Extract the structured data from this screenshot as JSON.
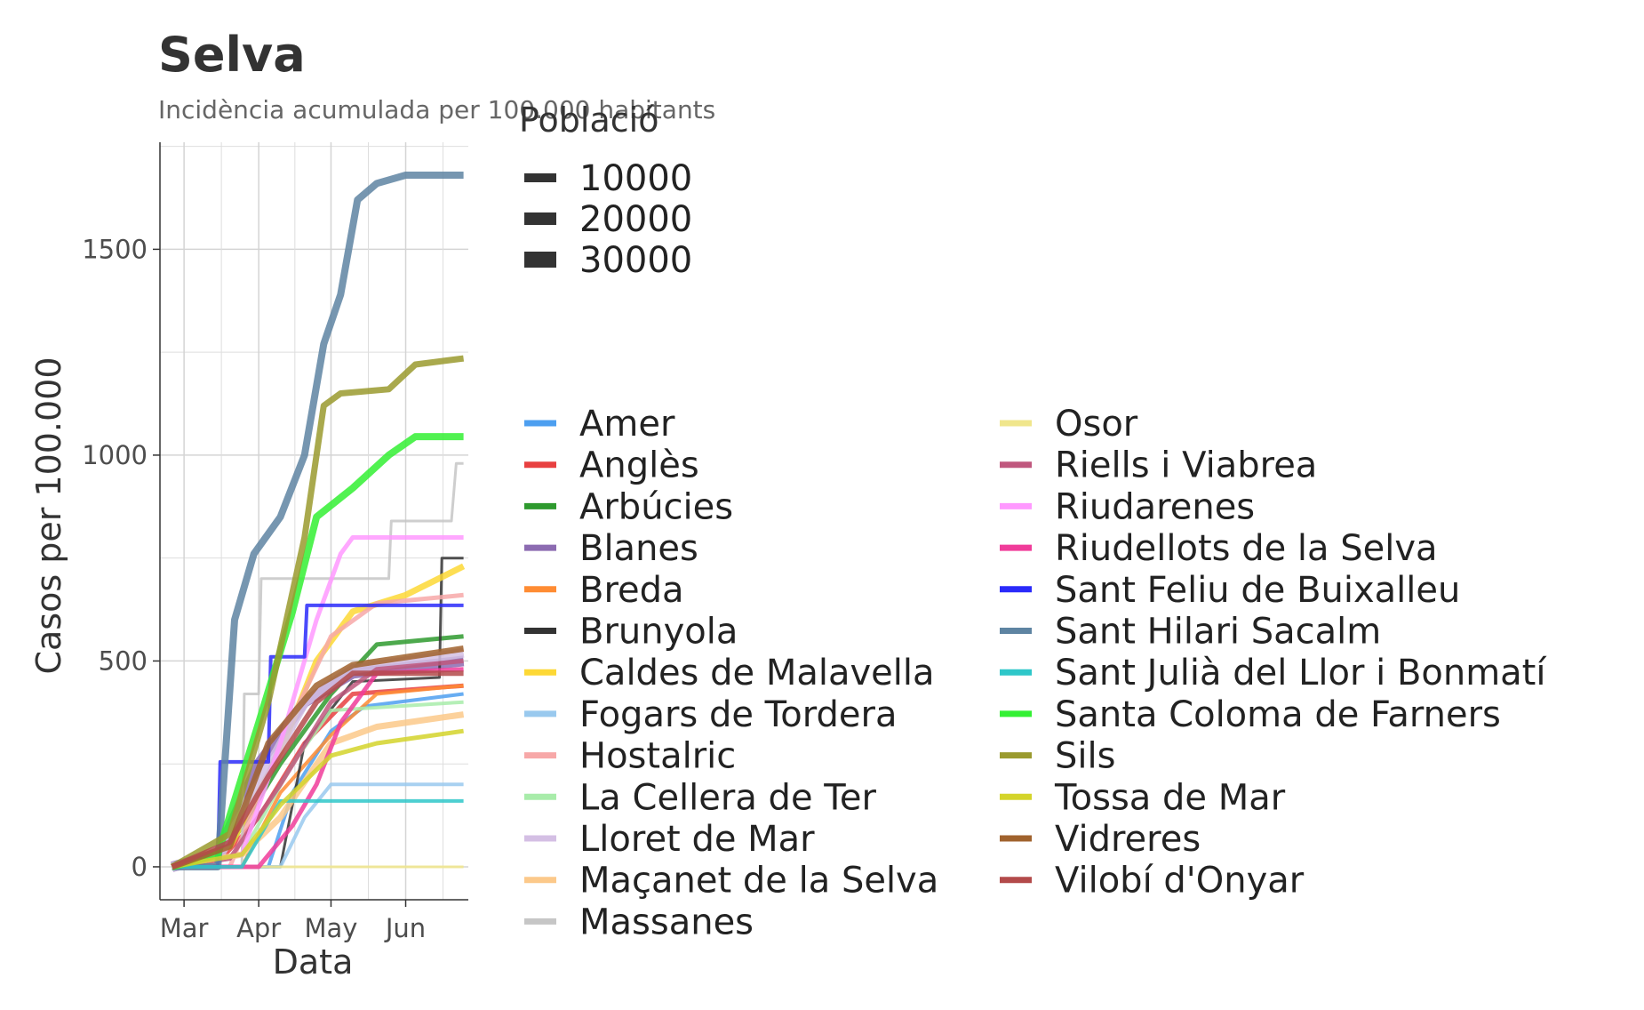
{
  "chart_data": {
    "type": "line",
    "title": "Selva",
    "subtitle": "Incidència acumulada per 100.000 habitants",
    "xlabel": "Data",
    "ylabel": "Casos per 100.000",
    "x_ticks": [
      "Mar",
      "Apr",
      "May",
      "Jun"
    ],
    "x_tick_dates": [
      "2020-03-01",
      "2020-04-01",
      "2020-05-01",
      "2020-06-01"
    ],
    "x_range": [
      "2020-02-20",
      "2020-06-27"
    ],
    "y_ticks": [
      0,
      500,
      1000,
      1500
    ],
    "ylim": [
      -80,
      1760
    ],
    "grid": true,
    "size_legend": {
      "title": "Població",
      "entries": [
        "10000",
        "20000",
        "30000"
      ]
    },
    "series": [
      {
        "name": "Amer",
        "color": "#4d9ff0",
        "width": 4,
        "points": [
          [
            "2020-02-25",
            0
          ],
          [
            "2020-04-05",
            0
          ],
          [
            "2020-04-15",
            180
          ],
          [
            "2020-05-01",
            330
          ],
          [
            "2020-05-15",
            390
          ],
          [
            "2020-06-25",
            420
          ]
        ]
      },
      {
        "name": "Anglès",
        "color": "#e84040",
        "width": 5,
        "points": [
          [
            "2020-02-25",
            0
          ],
          [
            "2020-03-15",
            10
          ],
          [
            "2020-04-01",
            120
          ],
          [
            "2020-04-20",
            300
          ],
          [
            "2020-05-10",
            420
          ],
          [
            "2020-06-25",
            440
          ]
        ]
      },
      {
        "name": "Arbúcies",
        "color": "#2e9a2e",
        "width": 5,
        "points": [
          [
            "2020-02-25",
            0
          ],
          [
            "2020-03-20",
            50
          ],
          [
            "2020-04-10",
            250
          ],
          [
            "2020-05-01",
            420
          ],
          [
            "2020-05-20",
            540
          ],
          [
            "2020-06-25",
            560
          ]
        ]
      },
      {
        "name": "Blanes",
        "color": "#8c6bb1",
        "width": 12,
        "points": [
          [
            "2020-02-25",
            0
          ],
          [
            "2020-03-15",
            30
          ],
          [
            "2020-04-01",
            250
          ],
          [
            "2020-04-20",
            400
          ],
          [
            "2020-05-10",
            470
          ],
          [
            "2020-06-25",
            500
          ]
        ]
      },
      {
        "name": "Breda",
        "color": "#ff8c33",
        "width": 4,
        "points": [
          [
            "2020-02-25",
            0
          ],
          [
            "2020-03-25",
            0
          ],
          [
            "2020-04-10",
            180
          ],
          [
            "2020-05-01",
            320
          ],
          [
            "2020-05-20",
            420
          ],
          [
            "2020-06-25",
            440
          ]
        ]
      },
      {
        "name": "Brunyola",
        "color": "#333333",
        "width": 3,
        "points": [
          [
            "2020-02-25",
            0
          ],
          [
            "2020-04-10",
            0
          ],
          [
            "2020-04-20",
            300
          ],
          [
            "2020-05-10",
            450
          ],
          [
            "2020-06-15",
            460
          ],
          [
            "2020-06-16",
            750
          ],
          [
            "2020-06-25",
            750
          ]
        ]
      },
      {
        "name": "Caldes de Malavella",
        "color": "#fdd835",
        "width": 7,
        "points": [
          [
            "2020-02-25",
            0
          ],
          [
            "2020-03-20",
            50
          ],
          [
            "2020-04-10",
            280
          ],
          [
            "2020-04-25",
            500
          ],
          [
            "2020-05-10",
            620
          ],
          [
            "2020-06-01",
            660
          ],
          [
            "2020-06-25",
            730
          ]
        ]
      },
      {
        "name": "Fogars de Tordera",
        "color": "#99c9ee",
        "width": 4,
        "points": [
          [
            "2020-02-25",
            0
          ],
          [
            "2020-04-10",
            0
          ],
          [
            "2020-04-20",
            120
          ],
          [
            "2020-05-01",
            200
          ],
          [
            "2020-06-25",
            200
          ]
        ]
      },
      {
        "name": "Hostalric",
        "color": "#f7a8a8",
        "width": 5,
        "points": [
          [
            "2020-02-25",
            0
          ],
          [
            "2020-03-20",
            0
          ],
          [
            "2020-04-10",
            300
          ],
          [
            "2020-05-01",
            560
          ],
          [
            "2020-05-20",
            640
          ],
          [
            "2020-06-25",
            660
          ]
        ]
      },
      {
        "name": "La Cellera de Ter",
        "color": "#a8ecaa",
        "width": 4,
        "points": [
          [
            "2020-02-25",
            0
          ],
          [
            "2020-03-25",
            30
          ],
          [
            "2020-04-15",
            250
          ],
          [
            "2020-05-01",
            380
          ],
          [
            "2020-06-25",
            400
          ]
        ]
      },
      {
        "name": "Lloret de Mar",
        "color": "#d4bfe4",
        "width": 11,
        "points": [
          [
            "2020-02-25",
            0
          ],
          [
            "2020-03-15",
            20
          ],
          [
            "2020-04-01",
            200
          ],
          [
            "2020-04-20",
            400
          ],
          [
            "2020-05-10",
            480
          ],
          [
            "2020-06-25",
            520
          ]
        ]
      },
      {
        "name": "Maçanet de la Selva",
        "color": "#fcc98a",
        "width": 7,
        "points": [
          [
            "2020-02-25",
            0
          ],
          [
            "2020-03-25",
            30
          ],
          [
            "2020-04-10",
            120
          ],
          [
            "2020-05-01",
            300
          ],
          [
            "2020-05-20",
            340
          ],
          [
            "2020-06-25",
            370
          ]
        ]
      },
      {
        "name": "Massanes",
        "color": "#c6c6c6",
        "width": 3,
        "points": [
          [
            "2020-02-25",
            0
          ],
          [
            "2020-03-25",
            0
          ],
          [
            "2020-03-26",
            420
          ],
          [
            "2020-04-01",
            420
          ],
          [
            "2020-04-02",
            700
          ],
          [
            "2020-05-25",
            700
          ],
          [
            "2020-05-26",
            840
          ],
          [
            "2020-06-20",
            840
          ],
          [
            "2020-06-22",
            980
          ],
          [
            "2020-06-25",
            980
          ]
        ]
      },
      {
        "name": "Osor",
        "color": "#f0e68c",
        "width": 3,
        "points": [
          [
            "2020-02-25",
            0
          ],
          [
            "2020-06-25",
            0
          ]
        ]
      },
      {
        "name": "Riells i Viabrea",
        "color": "#c0587e",
        "width": 5,
        "points": [
          [
            "2020-02-25",
            0
          ],
          [
            "2020-03-20",
            20
          ],
          [
            "2020-04-10",
            200
          ],
          [
            "2020-05-01",
            400
          ],
          [
            "2020-05-20",
            480
          ],
          [
            "2020-06-25",
            500
          ]
        ]
      },
      {
        "name": "Riudarenes",
        "color": "#ff99ff",
        "width": 5,
        "points": [
          [
            "2020-02-25",
            0
          ],
          [
            "2020-03-25",
            30
          ],
          [
            "2020-04-10",
            300
          ],
          [
            "2020-04-25",
            600
          ],
          [
            "2020-05-05",
            760
          ],
          [
            "2020-05-10",
            800
          ],
          [
            "2020-06-25",
            800
          ]
        ]
      },
      {
        "name": "Riudellots de la Selva",
        "color": "#f03c9a",
        "width": 5,
        "points": [
          [
            "2020-02-25",
            0
          ],
          [
            "2020-04-01",
            0
          ],
          [
            "2020-04-15",
            100
          ],
          [
            "2020-04-25",
            200
          ],
          [
            "2020-05-05",
            350
          ],
          [
            "2020-05-20",
            470
          ],
          [
            "2020-06-25",
            480
          ]
        ]
      },
      {
        "name": "Sant Feliu de Buixalleu",
        "color": "#2a2afa",
        "width": 4,
        "points": [
          [
            "2020-02-25",
            0
          ],
          [
            "2020-03-15",
            0
          ],
          [
            "2020-03-16",
            255
          ],
          [
            "2020-04-05",
            255
          ],
          [
            "2020-04-06",
            510
          ],
          [
            "2020-04-20",
            510
          ],
          [
            "2020-04-21",
            635
          ],
          [
            "2020-06-25",
            635
          ]
        ]
      },
      {
        "name": "Sant Hilari Sacalm",
        "color": "#5e84a2",
        "width": 8,
        "points": [
          [
            "2020-02-25",
            0
          ],
          [
            "2020-03-15",
            0
          ],
          [
            "2020-03-22",
            600
          ],
          [
            "2020-03-30",
            760
          ],
          [
            "2020-04-10",
            850
          ],
          [
            "2020-04-20",
            1000
          ],
          [
            "2020-04-28",
            1270
          ],
          [
            "2020-05-05",
            1390
          ],
          [
            "2020-05-12",
            1620
          ],
          [
            "2020-05-20",
            1660
          ],
          [
            "2020-06-01",
            1680
          ],
          [
            "2020-06-25",
            1680
          ]
        ]
      },
      {
        "name": "Sant Julià del Llor i Bonmatí",
        "color": "#2ec7c9",
        "width": 4,
        "points": [
          [
            "2020-02-25",
            0
          ],
          [
            "2020-03-25",
            0
          ],
          [
            "2020-04-10",
            160
          ],
          [
            "2020-06-25",
            160
          ]
        ]
      },
      {
        "name": "Santa Coloma de Farners",
        "color": "#33f033",
        "width": 8,
        "points": [
          [
            "2020-02-25",
            0
          ],
          [
            "2020-03-15",
            30
          ],
          [
            "2020-04-01",
            350
          ],
          [
            "2020-04-15",
            620
          ],
          [
            "2020-04-25",
            850
          ],
          [
            "2020-05-10",
            920
          ],
          [
            "2020-05-25",
            1000
          ],
          [
            "2020-06-05",
            1045
          ],
          [
            "2020-06-25",
            1045
          ]
        ]
      },
      {
        "name": "Sils",
        "color": "#9a9a2e",
        "width": 7,
        "points": [
          [
            "2020-02-25",
            0
          ],
          [
            "2020-03-20",
            80
          ],
          [
            "2020-04-05",
            400
          ],
          [
            "2020-04-20",
            800
          ],
          [
            "2020-04-28",
            1120
          ],
          [
            "2020-05-05",
            1150
          ],
          [
            "2020-05-25",
            1160
          ],
          [
            "2020-06-05",
            1220
          ],
          [
            "2020-06-25",
            1235
          ]
        ]
      },
      {
        "name": "Tossa de Mar",
        "color": "#d4d42a",
        "width": 5,
        "points": [
          [
            "2020-02-25",
            0
          ],
          [
            "2020-03-25",
            30
          ],
          [
            "2020-04-10",
            150
          ],
          [
            "2020-05-01",
            270
          ],
          [
            "2020-05-20",
            300
          ],
          [
            "2020-06-25",
            330
          ]
        ]
      },
      {
        "name": "Vidreres",
        "color": "#a0622d",
        "width": 7,
        "points": [
          [
            "2020-02-25",
            0
          ],
          [
            "2020-03-20",
            50
          ],
          [
            "2020-04-05",
            300
          ],
          [
            "2020-04-25",
            440
          ],
          [
            "2020-05-10",
            490
          ],
          [
            "2020-06-25",
            530
          ]
        ]
      },
      {
        "name": "Vilobí d'Onyar",
        "color": "#b34a4a",
        "width": 6,
        "points": [
          [
            "2020-02-25",
            0
          ],
          [
            "2020-03-20",
            60
          ],
          [
            "2020-04-05",
            220
          ],
          [
            "2020-04-25",
            400
          ],
          [
            "2020-05-10",
            470
          ],
          [
            "2020-06-25",
            470
          ]
        ]
      }
    ]
  }
}
